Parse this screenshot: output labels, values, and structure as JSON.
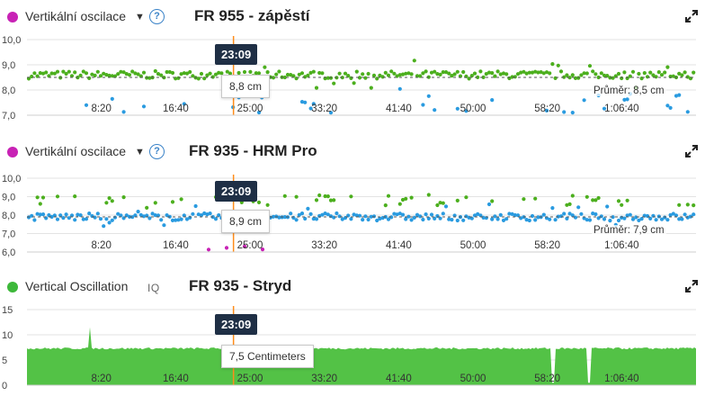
{
  "colors": {
    "green": "#4caf1e",
    "blue": "#2a9be0",
    "magenta": "#c822b5",
    "area": "#53c246",
    "navy": "#1f2f45"
  },
  "icons": {
    "expand": "expand-arrows-icon",
    "help": "question-circle-icon",
    "caret": "caret-down-icon"
  },
  "panels": [
    {
      "metric_label": "Vertikální oscilace",
      "help_glyph": "?",
      "title": "FR 955 - zápěstí",
      "marker_color": "#c822b5",
      "cursor_time": "23:09",
      "tooltip": "8,8 cm",
      "average": "Průměr: 8,5 cm"
    },
    {
      "metric_label": "Vertikální oscilace",
      "help_glyph": "?",
      "title": "FR 935 - HRM Pro",
      "marker_color": "#c822b5",
      "cursor_time": "23:09",
      "tooltip": "8,9 cm",
      "average": "Průměr: 7,9 cm"
    },
    {
      "metric_label": "Vertical Oscillation",
      "iq_label": "IQ",
      "title": "FR 935 - Stryd",
      "marker_color": "#3db83a",
      "cursor_time": "23:09",
      "tooltip": "7,5 Centimeters"
    }
  ],
  "chart_data": [
    {
      "type": "scatter",
      "title": "FR 955 - zápěstí",
      "ylabel": "Vertikální oscilace",
      "y_ticks": [
        "10,0",
        "9,0",
        "8,0",
        "7,0"
      ],
      "ylim": [
        7.0,
        10.0
      ],
      "x_ticks": [
        "8:20",
        "16:40",
        "25:00",
        "33:20",
        "41:40",
        "50:00",
        "58:20",
        "1:06:40"
      ],
      "x_tick_seconds": [
        500,
        1000,
        1500,
        2000,
        2500,
        3000,
        3500,
        4000
      ],
      "xlim_seconds": [
        0,
        4500
      ],
      "cursor_seconds": 1389,
      "average": 8.5,
      "series": [
        {
          "color": "green",
          "base": 8.6,
          "spread": 0.15
        },
        {
          "color": "blue",
          "base": 7.5,
          "spread": 0.4
        }
      ]
    },
    {
      "type": "scatter",
      "title": "FR 935 - HRM Pro",
      "ylabel": "Vertikální oscilace",
      "y_ticks": [
        "10,0",
        "9,0",
        "8,0",
        "7,0",
        "6,0"
      ],
      "ylim": [
        6.0,
        10.0
      ],
      "x_ticks": [
        "8:20",
        "16:40",
        "25:00",
        "33:20",
        "41:40",
        "50:00",
        "58:20",
        "1:06:40"
      ],
      "x_tick_seconds": [
        500,
        1000,
        1500,
        2000,
        2500,
        3000,
        3500,
        4000
      ],
      "xlim_seconds": [
        0,
        4500
      ],
      "cursor_seconds": 1389,
      "average": 7.9,
      "series": [
        {
          "color": "blue",
          "base": 7.9,
          "spread": 0.2
        },
        {
          "color": "green",
          "base": 8.8,
          "spread": 0.3
        },
        {
          "color": "magenta",
          "base": 6.2,
          "spread": 0.1
        }
      ]
    },
    {
      "type": "area",
      "title": "FR 935 - Stryd",
      "ylabel": "Vertical Oscillation",
      "y_ticks": [
        "15",
        "10",
        "5",
        "0"
      ],
      "ylim": [
        0,
        15
      ],
      "x_ticks": [
        "8:20",
        "16:40",
        "25:00",
        "33:20",
        "41:40",
        "50:00",
        "58:20",
        "1:06:40"
      ],
      "x_tick_seconds": [
        500,
        1000,
        1500,
        2000,
        2500,
        3000,
        3500,
        4000
      ],
      "xlim_seconds": [
        0,
        4500
      ],
      "cursor_seconds": 1389,
      "series": [
        {
          "color": "area",
          "base": 7.3,
          "spread": 0.2
        }
      ]
    }
  ]
}
